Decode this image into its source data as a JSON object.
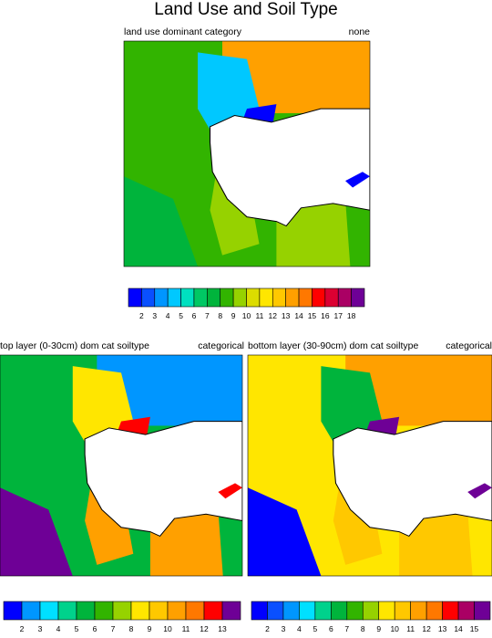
{
  "title": "Land Use and Soil Type",
  "panels": [
    {
      "left_label": "land use dominant category",
      "right_label": "none",
      "colors": [
        "#0000ff",
        "#0a50ff",
        "#0096ff",
        "#00c8ff",
        "#00e0c0",
        "#00c864",
        "#00b43c",
        "#32b400",
        "#96d200",
        "#dcdc00",
        "#ffe600",
        "#ffc800",
        "#ffa000",
        "#ff7800",
        "#ff0000",
        "#dc0032",
        "#aa0064",
        "#6e0096"
      ],
      "ticks": [
        2,
        3,
        4,
        5,
        6,
        7,
        8,
        9,
        10,
        11,
        12,
        13,
        14,
        15,
        16,
        17,
        18
      ]
    },
    {
      "left_label": "top layer (0-30cm) dom cat soiltype",
      "right_label": "categorical",
      "colors": [
        "#0000ff",
        "#0096ff",
        "#00e0ff",
        "#00d28c",
        "#00b43c",
        "#32b400",
        "#96d200",
        "#ffe600",
        "#ffc800",
        "#ffa000",
        "#ff7800",
        "#ff0000",
        "#6e0096"
      ],
      "ticks": [
        2,
        3,
        4,
        5,
        6,
        7,
        8,
        9,
        10,
        11,
        12,
        13
      ]
    },
    {
      "left_label": "bottom layer (30-90cm) dom cat soiltype",
      "right_label": "categorical",
      "colors": [
        "#0000ff",
        "#0a50ff",
        "#0096ff",
        "#00e0ff",
        "#00d28c",
        "#00b43c",
        "#32b400",
        "#96d200",
        "#ffe600",
        "#ffc800",
        "#ffa000",
        "#ff7800",
        "#ff0000",
        "#aa0064",
        "#6e0096"
      ],
      "ticks": [
        2,
        3,
        4,
        5,
        6,
        7,
        8,
        9,
        10,
        11,
        12,
        13,
        14,
        15
      ]
    }
  ]
}
